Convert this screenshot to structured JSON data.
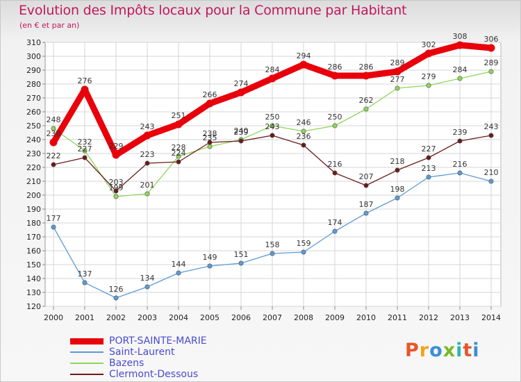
{
  "title": "Evolution des Impôts locaux pour la Commune par Habitant",
  "subtitle": "(en € et par an)",
  "logo": {
    "text": "Proxiti",
    "colors": [
      "#e8552a",
      "#f3a317",
      "#3a8fd6",
      "#7ab928",
      "#2fb3b3",
      "#e8552a",
      "#3a8fd6"
    ]
  },
  "chart_data": {
    "type": "line",
    "title": "Evolution des Impôts locaux pour la Commune par Habitant",
    "subtitle": "(en € et par an)",
    "xlabel": "",
    "ylabel": "",
    "x": [
      "2000",
      "2001",
      "2002",
      "2003",
      "2004",
      "2005",
      "2006",
      "2007",
      "2008",
      "2009",
      "2010",
      "2011",
      "2012",
      "2013",
      "2014"
    ],
    "ylim": [
      120,
      310
    ],
    "yticks": [
      120,
      130,
      140,
      150,
      160,
      170,
      180,
      190,
      200,
      210,
      220,
      230,
      240,
      250,
      260,
      270,
      280,
      290,
      300,
      310
    ],
    "grid": true,
    "legend_position": "bottom-left",
    "series": [
      {
        "name": "PORT-SAINTE-MARIE",
        "color": "#e8000b",
        "values": [
          238,
          276,
          229,
          243,
          251,
          266,
          274,
          284,
          294,
          286,
          286,
          289,
          302,
          308,
          306
        ]
      },
      {
        "name": "Saint-Laurent",
        "color": "#5b9bd5",
        "values": [
          177,
          137,
          126,
          134,
          144,
          149,
          151,
          158,
          159,
          174,
          187,
          198,
          213,
          216,
          210
        ]
      },
      {
        "name": "Bazens",
        "color": "#8fd45a",
        "values": [
          248,
          232,
          199,
          201,
          228,
          235,
          240,
          250,
          246,
          250,
          262,
          277,
          279,
          284,
          289
        ]
      },
      {
        "name": "Clermont-Dessous",
        "color": "#6b1a1a",
        "values": [
          222,
          227,
          203,
          223,
          224,
          238,
          239,
          243,
          236,
          216,
          207,
          218,
          227,
          239,
          243
        ]
      }
    ]
  }
}
